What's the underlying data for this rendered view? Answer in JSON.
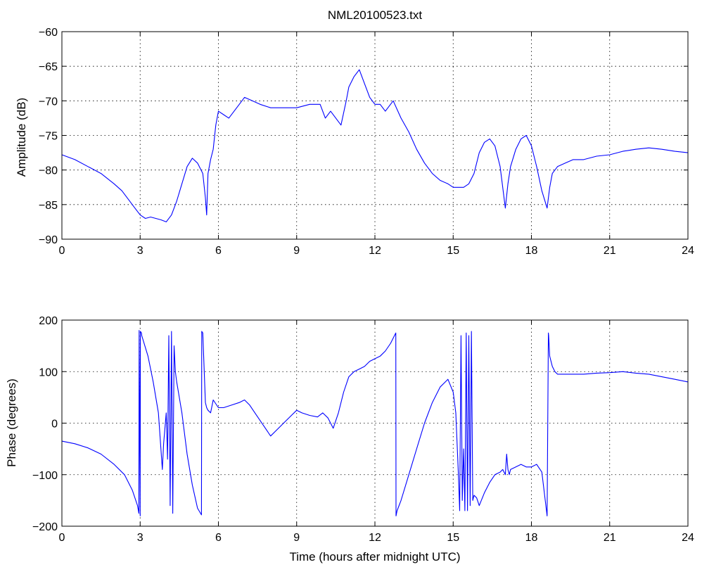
{
  "colors": {
    "series": "#0000ff",
    "axes": "#000000",
    "background": "#ffffff"
  },
  "chart_data": [
    {
      "type": "line",
      "title": "NML20100523.txt",
      "xlabel": "",
      "ylabel": "Amplitude (dB)",
      "xlim": [
        0,
        24
      ],
      "ylim": [
        -90,
        -60
      ],
      "xticks": [
        0,
        3,
        6,
        9,
        12,
        15,
        18,
        21,
        24
      ],
      "yticks": [
        -90,
        -85,
        -80,
        -75,
        -70,
        -65,
        -60
      ],
      "grid": true,
      "series": [
        {
          "color": "#0000ff",
          "x": [
            0,
            0.5,
            1,
            1.5,
            2,
            2.3,
            2.6,
            2.8,
            3.0,
            3.2,
            3.4,
            3.6,
            3.8,
            4.0,
            4.2,
            4.4,
            4.6,
            4.8,
            5.0,
            5.2,
            5.4,
            5.5,
            5.55,
            5.6,
            5.7,
            5.8,
            5.9,
            6.0,
            6.2,
            6.4,
            6.6,
            6.8,
            7.0,
            7.3,
            7.6,
            8.0,
            8.5,
            9.0,
            9.5,
            9.9,
            10.1,
            10.3,
            10.5,
            10.7,
            10.9,
            11.0,
            11.2,
            11.4,
            11.6,
            11.8,
            12.0,
            12.2,
            12.4,
            12.7,
            13.0,
            13.3,
            13.6,
            13.9,
            14.2,
            14.5,
            14.8,
            15.0,
            15.2,
            15.4,
            15.6,
            15.8,
            16.0,
            16.2,
            16.4,
            16.6,
            16.8,
            17.0,
            17.1,
            17.2,
            17.4,
            17.6,
            17.8,
            18.0,
            18.2,
            18.4,
            18.6,
            18.7,
            18.8,
            19.0,
            19.3,
            19.6,
            20.0,
            20.5,
            21.0,
            21.5,
            22.0,
            22.5,
            23.0,
            23.5,
            24.0
          ],
          "y": [
            -77.8,
            -78.5,
            -79.5,
            -80.5,
            -82.0,
            -83.0,
            -84.5,
            -85.5,
            -86.5,
            -87.0,
            -86.8,
            -87.0,
            -87.2,
            -87.5,
            -86.5,
            -84.5,
            -82.0,
            -79.5,
            -78.3,
            -79.0,
            -80.5,
            -84.0,
            -86.5,
            -80.5,
            -78.5,
            -77.0,
            -73.5,
            -71.5,
            -72.0,
            -72.5,
            -71.5,
            -70.5,
            -69.5,
            -70.0,
            -70.5,
            -71.0,
            -71.0,
            -71.0,
            -70.5,
            -70.5,
            -72.5,
            -71.5,
            -72.5,
            -73.5,
            -70.0,
            -68.0,
            -66.5,
            -65.5,
            -67.5,
            -69.5,
            -70.5,
            -70.5,
            -71.5,
            -70.0,
            -72.5,
            -74.5,
            -77.0,
            -79.0,
            -80.5,
            -81.5,
            -82.0,
            -82.5,
            -82.5,
            -82.5,
            -82.0,
            -80.5,
            -77.5,
            -76.0,
            -75.5,
            -76.5,
            -79.5,
            -85.5,
            -82.0,
            -79.5,
            -77.0,
            -75.5,
            -75.0,
            -76.5,
            -79.5,
            -83.0,
            -85.5,
            -82.5,
            -80.5,
            -79.5,
            -79.0,
            -78.5,
            -78.5,
            -78.0,
            -77.8,
            -77.3,
            -77.0,
            -76.8,
            -77.0,
            -77.3,
            -77.5
          ]
        }
      ]
    },
    {
      "type": "line",
      "title": "",
      "xlabel": "Time (hours after midnight UTC)",
      "ylabel": "Phase (degrees)",
      "xlim": [
        0,
        24
      ],
      "ylim": [
        -200,
        200
      ],
      "xticks": [
        0,
        3,
        6,
        9,
        12,
        15,
        18,
        21,
        24
      ],
      "yticks": [
        -200,
        -100,
        0,
        100,
        200
      ],
      "grid": true,
      "series": [
        {
          "color": "#0000ff",
          "x": [
            0,
            0.5,
            1.0,
            1.5,
            2.0,
            2.4,
            2.7,
            2.9,
            2.95,
            2.96,
            3.0,
            3.01,
            3.05,
            3.06,
            3.3,
            3.5,
            3.7,
            3.85,
            3.9,
            4.0,
            4.05,
            4.1,
            4.15,
            4.2,
            4.25,
            4.3,
            4.35,
            4.4,
            4.6,
            4.8,
            5.0,
            5.2,
            5.35,
            5.36,
            5.4,
            5.5,
            5.55,
            5.6,
            5.7,
            5.8,
            6.0,
            6.2,
            6.5,
            6.8,
            7.0,
            7.2,
            7.4,
            7.6,
            7.8,
            8.0,
            8.2,
            8.5,
            8.8,
            9.0,
            9.2,
            9.5,
            9.8,
            10.0,
            10.2,
            10.4,
            10.6,
            10.8,
            11.0,
            11.2,
            11.4,
            11.6,
            11.8,
            12.0,
            12.2,
            12.4,
            12.6,
            12.8,
            12.81,
            12.85,
            13.0,
            13.3,
            13.6,
            13.9,
            14.2,
            14.5,
            14.8,
            15.0,
            15.1,
            15.2,
            15.25,
            15.3,
            15.35,
            15.4,
            15.45,
            15.5,
            15.55,
            15.6,
            15.65,
            15.7,
            15.75,
            15.8,
            15.9,
            16.0,
            16.2,
            16.4,
            16.6,
            16.8,
            16.9,
            17.0,
            17.05,
            17.1,
            17.15,
            17.2,
            17.4,
            17.6,
            17.8,
            18.0,
            18.2,
            18.4,
            18.6,
            18.65,
            18.66,
            18.7,
            18.8,
            18.9,
            19.0,
            19.5,
            20.0,
            20.5,
            21.0,
            21.5,
            22.0,
            22.5,
            23.0,
            23.5,
            24.0
          ],
          "y": [
            -35,
            -40,
            -48,
            -60,
            -80,
            -100,
            -130,
            -160,
            -175,
            180,
            -180,
            178,
            175,
            170,
            130,
            80,
            20,
            -90,
            -40,
            20,
            -70,
            170,
            -160,
            178,
            -175,
            150,
            100,
            80,
            20,
            -60,
            -120,
            -165,
            -178,
            178,
            175,
            40,
            30,
            25,
            20,
            45,
            30,
            30,
            35,
            40,
            45,
            35,
            20,
            5,
            -10,
            -25,
            -15,
            0,
            15,
            25,
            20,
            15,
            12,
            20,
            10,
            -10,
            20,
            60,
            90,
            100,
            105,
            110,
            120,
            125,
            130,
            140,
            155,
            175,
            -180,
            -170,
            -150,
            -100,
            -50,
            0,
            40,
            70,
            85,
            60,
            20,
            -100,
            -170,
            170,
            -150,
            -50,
            -170,
            175,
            -170,
            170,
            -160,
            178,
            -150,
            -140,
            -145,
            -160,
            -135,
            -115,
            -100,
            -95,
            -90,
            -100,
            -60,
            -90,
            -100,
            -90,
            -85,
            -80,
            -85,
            -85,
            -80,
            -95,
            -180,
            175,
            170,
            130,
            110,
            100,
            95,
            95,
            95,
            97,
            98,
            100,
            97,
            95,
            90,
            85,
            80
          ]
        }
      ]
    }
  ]
}
